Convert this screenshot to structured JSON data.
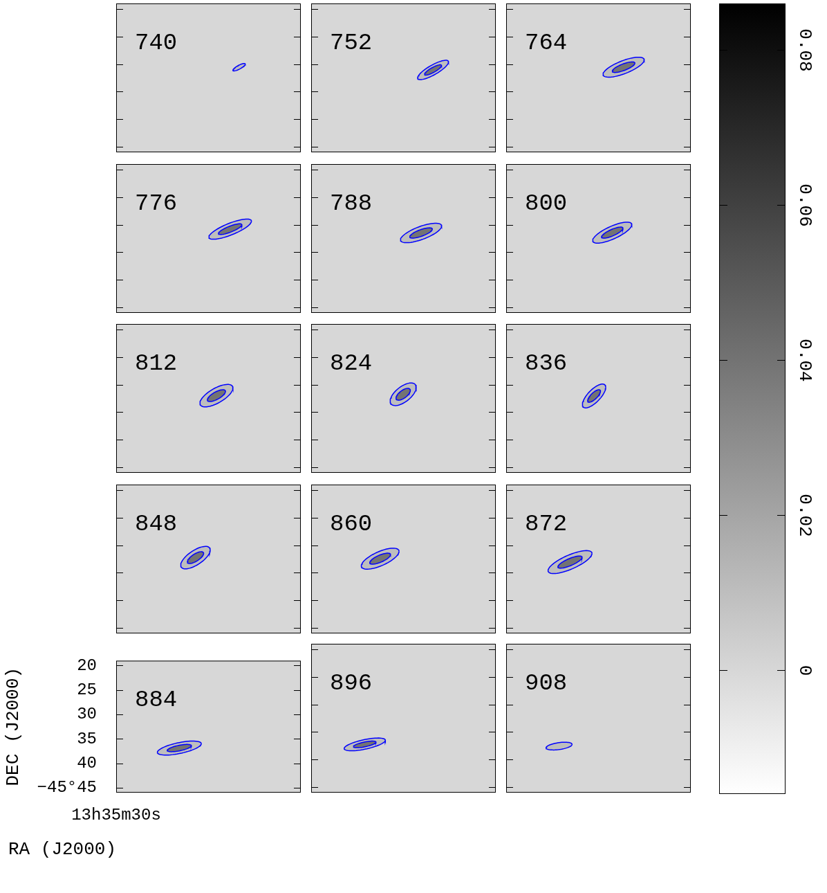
{
  "chart_data": {
    "type": "contour",
    "xlabel": "RA (J2000)",
    "ylabel": "DEC (J2000)",
    "xlim": [
      30,
      26.8
    ],
    "ylim": [
      46,
      19
    ],
    "xticks": [
      {
        "value": 30,
        "label": "13h35m30s"
      }
    ],
    "yticks": [
      20,
      25,
      30,
      35,
      40,
      {
        "value": 45,
        "label": "−45°45"
      }
    ],
    "color": "#0000ff",
    "background": 0,
    "colorbar": {
      "lim": [
        -0.016,
        0.086
      ],
      "ticks": [
        0,
        0.02,
        0.04,
        0.06,
        0.08
      ]
    },
    "panels": [
      {
        "velocity": 740,
        "tick_labels": false,
        "contours": [
          {
            "level": 0.01,
            "ra": 27.869,
            "dec": 30.56,
            "major": [
              -0.107,
              -0.56
            ],
            "minor": [
              0,
              0.38
            ]
          }
        ]
      },
      {
        "velocity": 752,
        "tick_labels": false,
        "contours": [
          {
            "level": 0.01,
            "ra": 27.887,
            "dec": 31.06,
            "major": [
              -0.268,
              -1.44
            ],
            "minor": [
              0,
              1.0
            ]
          },
          {
            "level": 0.04,
            "ra": 27.887,
            "dec": 31.06,
            "major": [
              -0.147,
              -0.79
            ],
            "minor": [
              0,
              0.5
            ]
          }
        ]
      },
      {
        "velocity": 764,
        "tick_labels": false,
        "contours": [
          {
            "level": 0.01,
            "ra": 27.964,
            "dec": 30.56,
            "major": [
              -0.357,
              -1.31
            ],
            "minor": [
              0,
              1.25
            ]
          },
          {
            "level": 0.04,
            "ra": 27.964,
            "dec": 30.56,
            "major": [
              -0.196,
              -0.72
            ],
            "minor": [
              0,
              0.63
            ]
          }
        ]
      },
      {
        "velocity": 776,
        "tick_labels": false,
        "contours": [
          {
            "level": 0.01,
            "ra": 28.024,
            "dec": 30.81,
            "major": [
              -0.369,
              -1.44
            ],
            "minor": [
              0,
              1.13
            ]
          },
          {
            "level": 0.04,
            "ra": 28.024,
            "dec": 30.81,
            "major": [
              -0.203,
              -0.79
            ],
            "minor": [
              0,
              0.57
            ]
          }
        ]
      },
      {
        "velocity": 788,
        "tick_labels": false,
        "contours": [
          {
            "level": 0.01,
            "ra": 28.095,
            "dec": 31.5,
            "major": [
              -0.357,
              -1.25
            ],
            "minor": [
              0,
              1.25
            ]
          },
          {
            "level": 0.04,
            "ra": 28.095,
            "dec": 31.5,
            "major": [
              -0.196,
              -0.69
            ],
            "minor": [
              0,
              0.63
            ]
          }
        ]
      },
      {
        "velocity": 800,
        "tick_labels": false,
        "contours": [
          {
            "level": 0.01,
            "ra": 28.161,
            "dec": 31.44,
            "major": [
              -0.339,
              -1.44
            ],
            "minor": [
              0,
              1.25
            ]
          },
          {
            "level": 0.04,
            "ra": 28.161,
            "dec": 31.44,
            "major": [
              -0.186,
              -0.79
            ],
            "minor": [
              0,
              0.63
            ]
          }
        ]
      },
      {
        "velocity": 812,
        "tick_labels": false,
        "contours": [
          {
            "level": 0.01,
            "ra": 28.262,
            "dec": 32.0,
            "major": [
              -0.286,
              -1.38
            ],
            "minor": [
              0,
              1.5
            ]
          },
          {
            "level": 0.04,
            "ra": 28.262,
            "dec": 32.0,
            "major": [
              -0.157,
              -0.76
            ],
            "minor": [
              0,
              0.75
            ]
          }
        ]
      },
      {
        "velocity": 824,
        "tick_labels": false,
        "contours": [
          {
            "level": 0.01,
            "ra": 28.405,
            "dec": 31.75,
            "major": [
              -0.226,
              -1.25
            ],
            "minor": [
              0,
              1.63
            ]
          },
          {
            "level": 0.04,
            "ra": 28.405,
            "dec": 31.75,
            "major": [
              -0.124,
              -0.69
            ],
            "minor": [
              0,
              0.82
            ]
          }
        ]
      },
      {
        "velocity": 836,
        "tick_labels": false,
        "contours": [
          {
            "level": 0.01,
            "ra": 28.476,
            "dec": 32.06,
            "major": [
              -0.202,
              -1.56
            ],
            "minor": [
              0,
              1.5
            ]
          },
          {
            "level": 0.04,
            "ra": 28.476,
            "dec": 32.06,
            "major": [
              -0.111,
              -0.86
            ],
            "minor": [
              0,
              0.75
            ]
          }
        ]
      },
      {
        "velocity": 848,
        "tick_labels": false,
        "contours": [
          {
            "level": 0.01,
            "ra": 28.625,
            "dec": 32.25,
            "major": [
              -0.256,
              -1.38
            ],
            "minor": [
              0,
              1.5
            ]
          },
          {
            "level": 0.04,
            "ra": 28.625,
            "dec": 32.25,
            "major": [
              -0.141,
              -0.76
            ],
            "minor": [
              0,
              0.75
            ]
          }
        ]
      },
      {
        "velocity": 860,
        "tick_labels": false,
        "contours": [
          {
            "level": 0.01,
            "ra": 28.804,
            "dec": 32.44,
            "major": [
              -0.327,
              -1.31
            ],
            "minor": [
              0,
              1.38
            ]
          },
          {
            "level": 0.04,
            "ra": 28.804,
            "dec": 32.44,
            "major": [
              -0.18,
              -0.72
            ],
            "minor": [
              0,
              0.69
            ]
          }
        ]
      },
      {
        "velocity": 872,
        "tick_labels": false,
        "contours": [
          {
            "level": 0.01,
            "ra": 28.893,
            "dec": 33.06,
            "major": [
              -0.381,
              -1.56
            ],
            "minor": [
              0,
              1.38
            ]
          },
          {
            "level": 0.04,
            "ra": 28.893,
            "dec": 33.06,
            "major": [
              -0.21,
              -0.86
            ],
            "minor": [
              0,
              0.69
            ]
          }
        ]
      },
      {
        "velocity": 884,
        "contours": [
          {
            "level": 0.01,
            "ra": 28.905,
            "dec": 36.88,
            "major": [
              -0.381,
              -0.88
            ],
            "minor": [
              0,
              1.13
            ]
          },
          {
            "level": 0.04,
            "ra": 28.905,
            "dec": 36.88,
            "major": [
              -0.21,
              -0.48
            ],
            "minor": [
              0,
              0.57
            ]
          }
        ]
      },
      {
        "velocity": 896,
        "tick_labels": false,
        "contours": [
          {
            "level": 0.01,
            "ra": 29.071,
            "dec": 37.25,
            "major": [
              -0.357,
              -0.75
            ],
            "minor": [
              0,
              0.88
            ]
          },
          {
            "level": 0.04,
            "ra": 29.071,
            "dec": 37.25,
            "major": [
              -0.196,
              -0.41
            ],
            "minor": [
              0,
              0.44
            ]
          }
        ]
      },
      {
        "velocity": 908,
        "tick_labels": false,
        "contours": [
          {
            "level": 0.01,
            "ra": 29.083,
            "dec": 37.56,
            "major": [
              -0.226,
              -0.31
            ],
            "minor": [
              0,
              0.63
            ]
          }
        ]
      }
    ]
  }
}
